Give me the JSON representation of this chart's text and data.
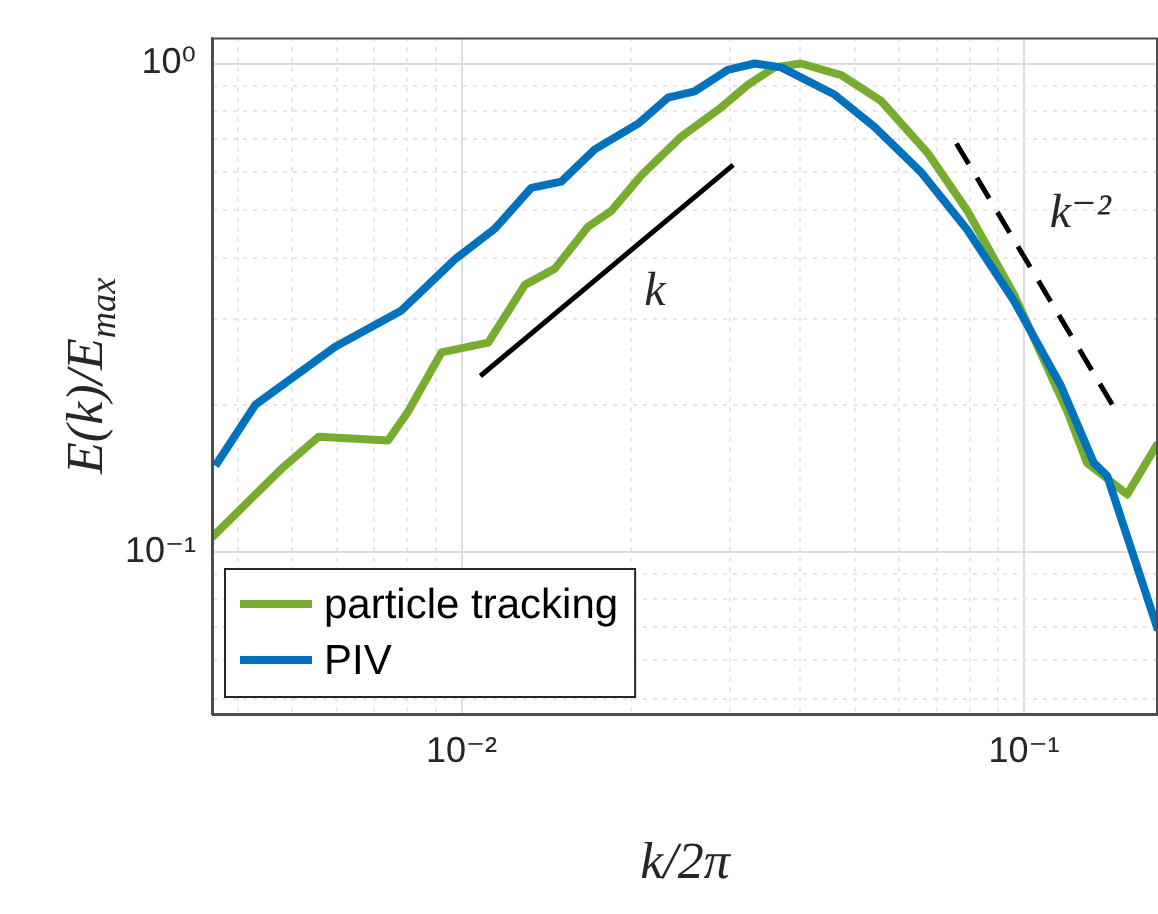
{
  "chart_data": {
    "type": "line",
    "xlabel": "k/2π",
    "ylabel": "E(k)/E$_{max}$",
    "log": "xy",
    "grid": true,
    "legend": "bottom left",
    "marker": "none",
    "line_style": "solid",
    "xlim": [
      0.0036,
      0.173
    ],
    "ylim": [
      0.0465,
      1.13
    ],
    "xticks": [
      {
        "value": 0.004,
        "label": null
      },
      {
        "value": 0.005,
        "label": null
      },
      {
        "value": 0.006,
        "label": null
      },
      {
        "value": 0.007,
        "label": null
      },
      {
        "value": 0.008,
        "label": null
      },
      {
        "value": 0.009,
        "label": null
      },
      {
        "value": 0.01,
        "label": "10⁻²"
      },
      {
        "value": 0.02,
        "label": null
      },
      {
        "value": 0.03,
        "label": null
      },
      {
        "value": 0.04,
        "label": null
      },
      {
        "value": 0.05,
        "label": null
      },
      {
        "value": 0.06,
        "label": null
      },
      {
        "value": 0.07,
        "label": null
      },
      {
        "value": 0.08,
        "label": null
      },
      {
        "value": 0.09,
        "label": null
      },
      {
        "value": 0.1,
        "label": "10⁻¹"
      }
    ],
    "yticks": [
      {
        "value": 0.05,
        "label": null
      },
      {
        "value": 0.06,
        "label": null
      },
      {
        "value": 0.07,
        "label": null
      },
      {
        "value": 0.08,
        "label": null
      },
      {
        "value": 0.09,
        "label": null
      },
      {
        "value": 0.1,
        "label": "10⁻¹"
      },
      {
        "value": 0.2,
        "label": null
      },
      {
        "value": 0.3,
        "label": null
      },
      {
        "value": 0.4,
        "label": null
      },
      {
        "value": 0.5,
        "label": null
      },
      {
        "value": 0.6,
        "label": null
      },
      {
        "value": 0.7,
        "label": null
      },
      {
        "value": 0.8,
        "label": null
      },
      {
        "value": 0.9,
        "label": null
      },
      {
        "value": 1,
        "label": "10⁰"
      }
    ],
    "series": [
      {
        "name": "particle tracking",
        "color": "#77ac30",
        "x": [
          0.0036,
          0.00479,
          0.00557,
          0.0074,
          0.00804,
          0.00921,
          0.01115,
          0.01296,
          0.01465,
          0.01678,
          0.01846,
          0.02087,
          0.0246,
          0.02894,
          0.03227,
          0.036,
          0.0401,
          0.0473,
          0.0557,
          0.0673,
          0.0793,
          0.096,
          0.1193,
          0.1294,
          0.1525,
          0.173
        ],
        "values": [
          0.107,
          0.148,
          0.172,
          0.169,
          0.194,
          0.256,
          0.268,
          0.352,
          0.38,
          0.463,
          0.499,
          0.59,
          0.709,
          0.813,
          0.904,
          0.982,
          1.0,
          0.947,
          0.838,
          0.657,
          0.499,
          0.336,
          0.194,
          0.152,
          0.131,
          0.167
        ]
      },
      {
        "name": "PIV",
        "color": "#0072bd",
        "x": [
          0.00365,
          0.0043,
          0.00596,
          0.00782,
          0.00973,
          0.01146,
          0.0133,
          0.01504,
          0.01725,
          0.0206,
          0.02327,
          0.02596,
          0.02973,
          0.0332,
          0.037,
          0.046,
          0.0542,
          0.0655,
          0.0793,
          0.096,
          0.1162,
          0.133,
          0.1405,
          0.173
        ],
        "values": [
          0.15,
          0.2,
          0.263,
          0.312,
          0.397,
          0.459,
          0.556,
          0.573,
          0.667,
          0.753,
          0.851,
          0.877,
          0.97,
          1.0,
          0.982,
          0.864,
          0.742,
          0.6,
          0.456,
          0.326,
          0.219,
          0.152,
          0.143,
          0.069
        ]
      },
      {
        "color": "#000000",
        "line_style": "solid",
        "x": [
          0.0108,
          0.0304
        ],
        "values": [
          0.229,
          0.62
        ]
      },
      {
        "color": "#000000",
        "line_style": "dashed",
        "x": [
          0.0758,
          0.1458
        ],
        "values": [
          0.686,
          0.194
        ]
      }
    ],
    "annotations": [
      "k",
      "k⁻²"
    ]
  }
}
